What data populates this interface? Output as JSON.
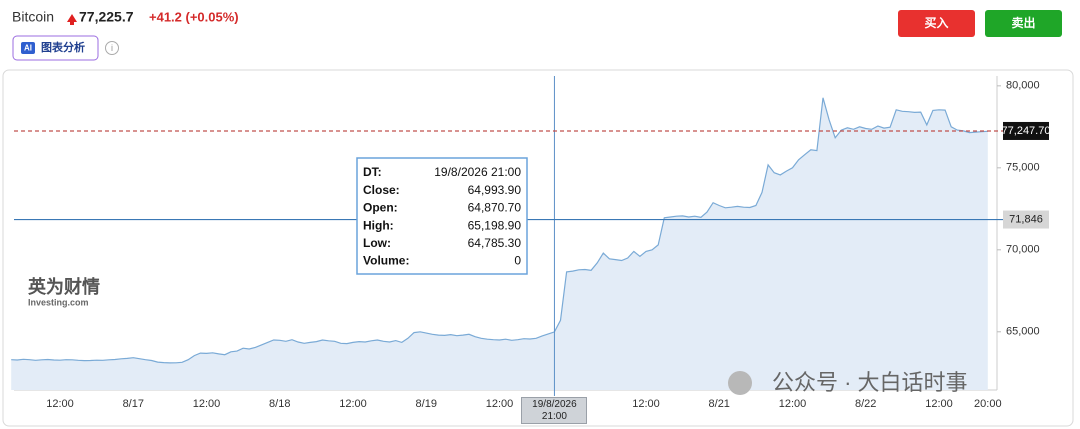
{
  "header": {
    "price": "77,225.7",
    "change": "+41.2 (+0.05%)",
    "ai_button": "图表分析",
    "buy": "买入",
    "sell": "卖出"
  },
  "watermarks": {
    "logo": "英为财情",
    "logo_sub": "Investing.com",
    "account": "公众号 · 大白话时事"
  },
  "chart_data": {
    "type": "area",
    "title": "Bitcoin",
    "color": "#7aaad6",
    "fill": "#e3ecf7",
    "categories": [
      null,
      null,
      null,
      null,
      null,
      null,
      null,
      null,
      "12:00",
      null,
      null,
      null,
      null,
      null,
      null,
      null,
      null,
      null,
      null,
      null,
      "8/17",
      null,
      null,
      null,
      null,
      null,
      null,
      null,
      null,
      null,
      null,
      null,
      "12:00",
      null,
      null,
      null,
      null,
      null,
      null,
      null,
      null,
      null,
      null,
      null,
      "8/18",
      null,
      null,
      null,
      null,
      null,
      null,
      null,
      null,
      null,
      null,
      null,
      "12:00",
      null,
      null,
      null,
      null,
      null,
      null,
      null,
      null,
      null,
      null,
      null,
      "8/19",
      null,
      null,
      null,
      null,
      null,
      null,
      null,
      null,
      null,
      null,
      null,
      "12:00",
      null,
      null,
      null,
      null,
      null,
      null,
      null,
      null,
      "19/8/2026 21:00",
      null,
      null,
      null,
      null,
      null,
      null,
      null,
      null,
      null,
      null,
      null,
      null,
      null,
      null,
      "12:00",
      null,
      null,
      null,
      null,
      null,
      null,
      null,
      null,
      null,
      null,
      null,
      "8/21",
      null,
      null,
      null,
      null,
      null,
      null,
      null,
      null,
      null,
      null,
      null,
      "12:00",
      null,
      null,
      null,
      null,
      null,
      null,
      null,
      null,
      null,
      null,
      null,
      "8/22",
      null,
      null,
      null,
      null,
      null,
      null,
      null,
      null,
      null,
      null,
      null,
      "12:00",
      null,
      null,
      null,
      null,
      null,
      null,
      null,
      "20:00"
    ],
    "values": [
      63300,
      63280,
      63320,
      63300,
      63260,
      63290,
      63310,
      63280,
      63270,
      63300,
      63290,
      63260,
      63240,
      63250,
      63270,
      63260,
      63290,
      63310,
      63350,
      63380,
      63420,
      63360,
      63300,
      63250,
      63150,
      63120,
      63100,
      63110,
      63140,
      63300,
      63550,
      63700,
      63680,
      63720,
      63650,
      63600,
      63780,
      63820,
      64000,
      63950,
      64050,
      64200,
      64350,
      64500,
      64480,
      64420,
      64520,
      64380,
      64300,
      64350,
      64400,
      64500,
      64450,
      64420,
      64300,
      64280,
      64350,
      64400,
      64380,
      64450,
      64500,
      64420,
      64380,
      64460,
      64350,
      64600,
      64950,
      65000,
      64920,
      64850,
      64800,
      64780,
      64830,
      64760,
      64800,
      64850,
      64700,
      64600,
      64550,
      64520,
      64500,
      64550,
      64480,
      64520,
      64580,
      64560,
      64600,
      64750,
      64870.7,
      64993.9,
      65700,
      68650,
      68700,
      68780,
      68800,
      68750,
      69200,
      69800,
      69450,
      69400,
      69350,
      69500,
      69900,
      69600,
      69900,
      70000,
      70300,
      71950,
      72000,
      72050,
      72070,
      72000,
      72050,
      71980,
      72300,
      72870,
      72700,
      72560,
      72600,
      72650,
      72600,
      72580,
      72700,
      73500,
      75180,
      74700,
      74570,
      74800,
      75000,
      75490,
      75800,
      76100,
      76050,
      79270,
      77930,
      76830,
      77300,
      77440,
      77350,
      77500,
      77400,
      77350,
      77550,
      77420,
      77480,
      78540,
      78450,
      78420,
      78380,
      78400,
      77620,
      78500,
      78540,
      78520,
      77500,
      77300,
      77250,
      77150,
      77180,
      77200,
      77225.7
    ],
    "ylim": [
      61450,
      80600
    ],
    "yticks": [
      {
        "value": 65000,
        "label": "65,000"
      },
      {
        "value": 70000,
        "label": "70,000"
      },
      {
        "value": 75000,
        "label": "75,000"
      },
      {
        "value": 80000,
        "label": "80,000"
      }
    ],
    "reference_lines": [
      {
        "value": 77247.7,
        "label": "77,247.70",
        "color": "#c0504d",
        "style": "dashed",
        "label_bg": "#111111"
      },
      {
        "value": 71846,
        "label": "71,846",
        "color": "#3a78b5",
        "style": "solid",
        "label_bg": "#d6d6d6"
      }
    ],
    "tooltip": {
      "rows": [
        {
          "label": "DT:",
          "value": "19/8/2026 21:00"
        },
        {
          "label": "Close:",
          "value": "64,993.90"
        },
        {
          "label": "Open:",
          "value": "64,870.70"
        },
        {
          "label": "High:",
          "value": "65,198.90"
        },
        {
          "label": "Low:",
          "value": "64,785.30"
        },
        {
          "label": "Volume:",
          "value": "0"
        }
      ]
    }
  }
}
